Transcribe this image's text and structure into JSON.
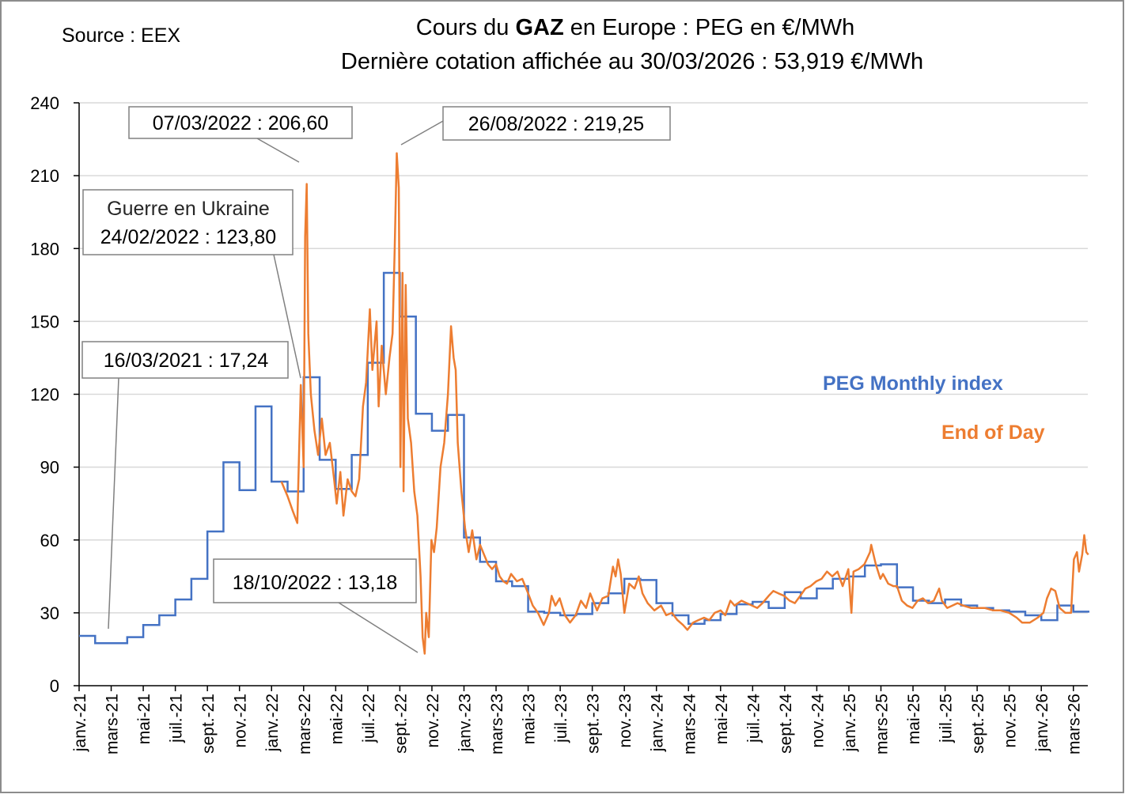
{
  "chart_data": {
    "type": "line",
    "source": "Source : EEX",
    "title_line1_prefix": "Cours du ",
    "title_line1_bold": "GAZ",
    "title_line1_suffix": " en Europe : PEG en €/MWh",
    "title_line2": "Dernière cotation affichée au 30/03/2026 : 53,919 €/MWh",
    "ylim": [
      0,
      240
    ],
    "yticks": [
      0,
      30,
      60,
      90,
      120,
      150,
      180,
      210,
      240
    ],
    "xticks": [
      "janv.-21",
      "mars-21",
      "mai-21",
      "juil.-21",
      "sept.-21",
      "nov.-21",
      "janv.-22",
      "mars-22",
      "mai-22",
      "juil.-22",
      "sept.-22",
      "nov.-22",
      "janv.-23",
      "mars-23",
      "mai-23",
      "juil.-23",
      "sept.-23",
      "nov.-23",
      "janv.-24",
      "mars-24",
      "mai-24",
      "juil.-24",
      "sept.-24",
      "nov.-24",
      "janv.-25",
      "mars-25",
      "mai-25",
      "juil.-25",
      "sept.-25",
      "nov.-25",
      "janv.-26",
      "mars-26"
    ],
    "grid": true,
    "colors": {
      "monthly": "#4472C4",
      "eod": "#ED7D31",
      "grid": "#D9D9D9"
    },
    "series": [
      {
        "name": "PEG Monthly index",
        "kind": "step-monthly",
        "start_month": "2021-01",
        "values": [
          20.5,
          17.5,
          17.5,
          20,
          25,
          29,
          35.5,
          44,
          63.5,
          92,
          80.5,
          115,
          84,
          80,
          127,
          93,
          81,
          95,
          133,
          170,
          152,
          112,
          105,
          111.5,
          61,
          51,
          43,
          41,
          30.5,
          30,
          29,
          29.5,
          34,
          38,
          44,
          43.5,
          34,
          29,
          25.5,
          27,
          29.5,
          33.5,
          34.5,
          32,
          38.5,
          36,
          40,
          44,
          45,
          49.5,
          50,
          40.5,
          35,
          34,
          35.5,
          33,
          32,
          31,
          30.5,
          29,
          27,
          33,
          30.5
        ]
      },
      {
        "name": "End of Day",
        "kind": "daily",
        "points": [
          [
            "2022-01-20",
            84
          ],
          [
            "2022-02-01",
            78
          ],
          [
            "2022-02-10",
            72
          ],
          [
            "2022-02-18",
            67
          ],
          [
            "2022-02-24",
            123.8
          ],
          [
            "2022-03-01",
            90
          ],
          [
            "2022-03-04",
            185
          ],
          [
            "2022-03-07",
            206.6
          ],
          [
            "2022-03-10",
            145
          ],
          [
            "2022-03-15",
            120
          ],
          [
            "2022-03-22",
            105
          ],
          [
            "2022-03-29",
            95
          ],
          [
            "2022-04-05",
            110
          ],
          [
            "2022-04-12",
            95
          ],
          [
            "2022-04-20",
            100
          ],
          [
            "2022-04-28",
            85
          ],
          [
            "2022-05-03",
            75
          ],
          [
            "2022-05-10",
            88
          ],
          [
            "2022-05-16",
            70
          ],
          [
            "2022-05-24",
            85
          ],
          [
            "2022-06-01",
            80
          ],
          [
            "2022-06-08",
            78
          ],
          [
            "2022-06-15",
            85
          ],
          [
            "2022-06-22",
            115
          ],
          [
            "2022-06-28",
            125
          ],
          [
            "2022-07-05",
            155
          ],
          [
            "2022-07-10",
            130
          ],
          [
            "2022-07-18",
            150
          ],
          [
            "2022-07-22",
            115
          ],
          [
            "2022-07-28",
            140
          ],
          [
            "2022-08-05",
            120
          ],
          [
            "2022-08-12",
            135
          ],
          [
            "2022-08-18",
            145
          ],
          [
            "2022-08-22",
            180
          ],
          [
            "2022-08-26",
            219.25
          ],
          [
            "2022-08-30",
            205
          ],
          [
            "2022-09-02",
            90
          ],
          [
            "2022-09-06",
            170
          ],
          [
            "2022-09-08",
            80
          ],
          [
            "2022-09-12",
            165
          ],
          [
            "2022-09-16",
            110
          ],
          [
            "2022-09-22",
            100
          ],
          [
            "2022-09-28",
            80
          ],
          [
            "2022-10-04",
            70
          ],
          [
            "2022-10-10",
            45
          ],
          [
            "2022-10-14",
            20
          ],
          [
            "2022-10-18",
            13.18
          ],
          [
            "2022-10-21",
            30
          ],
          [
            "2022-10-26",
            20
          ],
          [
            "2022-10-31",
            60
          ],
          [
            "2022-11-05",
            55
          ],
          [
            "2022-11-10",
            65
          ],
          [
            "2022-11-17",
            90
          ],
          [
            "2022-11-24",
            100
          ],
          [
            "2022-12-01",
            120
          ],
          [
            "2022-12-07",
            148
          ],
          [
            "2022-12-12",
            135
          ],
          [
            "2022-12-16",
            130
          ],
          [
            "2022-12-20",
            100
          ],
          [
            "2022-12-27",
            80
          ],
          [
            "2023-01-03",
            65
          ],
          [
            "2023-01-10",
            55
          ],
          [
            "2023-01-17",
            64
          ],
          [
            "2023-01-25",
            52
          ],
          [
            "2023-02-01",
            58
          ],
          [
            "2023-02-08",
            54
          ],
          [
            "2023-02-15",
            50
          ],
          [
            "2023-02-22",
            48
          ],
          [
            "2023-03-01",
            50
          ],
          [
            "2023-03-08",
            45
          ],
          [
            "2023-03-15",
            43
          ],
          [
            "2023-03-22",
            42
          ],
          [
            "2023-03-30",
            46
          ],
          [
            "2023-04-10",
            43
          ],
          [
            "2023-04-20",
            44
          ],
          [
            "2023-05-01",
            38
          ],
          [
            "2023-05-10",
            33
          ],
          [
            "2023-05-20",
            30
          ],
          [
            "2023-05-31",
            25
          ],
          [
            "2023-06-10",
            30
          ],
          [
            "2023-06-15",
            37
          ],
          [
            "2023-06-22",
            33
          ],
          [
            "2023-06-30",
            36
          ],
          [
            "2023-07-10",
            29
          ],
          [
            "2023-07-20",
            26
          ],
          [
            "2023-07-31",
            29
          ],
          [
            "2023-08-10",
            35
          ],
          [
            "2023-08-20",
            32
          ],
          [
            "2023-08-28",
            38
          ],
          [
            "2023-09-10",
            31
          ],
          [
            "2023-09-20",
            36
          ],
          [
            "2023-10-01",
            37
          ],
          [
            "2023-10-10",
            49
          ],
          [
            "2023-10-15",
            45
          ],
          [
            "2023-10-20",
            52
          ],
          [
            "2023-10-25",
            46
          ],
          [
            "2023-11-01",
            30
          ],
          [
            "2023-11-10",
            42
          ],
          [
            "2023-11-20",
            40
          ],
          [
            "2023-11-28",
            45
          ],
          [
            "2023-12-05",
            38
          ],
          [
            "2023-12-15",
            34
          ],
          [
            "2023-12-28",
            31
          ],
          [
            "2024-01-10",
            33
          ],
          [
            "2024-01-20",
            29
          ],
          [
            "2024-01-31",
            30
          ],
          [
            "2024-02-10",
            27
          ],
          [
            "2024-02-20",
            25
          ],
          [
            "2024-02-28",
            23
          ],
          [
            "2024-03-10",
            26
          ],
          [
            "2024-03-20",
            27
          ],
          [
            "2024-03-31",
            28
          ],
          [
            "2024-04-10",
            27
          ],
          [
            "2024-04-20",
            30
          ],
          [
            "2024-05-01",
            31
          ],
          [
            "2024-05-10",
            29
          ],
          [
            "2024-05-20",
            35
          ],
          [
            "2024-05-28",
            33
          ],
          [
            "2024-06-10",
            35
          ],
          [
            "2024-06-20",
            34
          ],
          [
            "2024-06-30",
            33
          ],
          [
            "2024-07-10",
            32
          ],
          [
            "2024-07-20",
            34
          ],
          [
            "2024-08-01",
            37
          ],
          [
            "2024-08-10",
            39
          ],
          [
            "2024-08-20",
            38
          ],
          [
            "2024-08-31",
            37
          ],
          [
            "2024-09-10",
            35
          ],
          [
            "2024-09-20",
            34
          ],
          [
            "2024-09-30",
            37
          ],
          [
            "2024-10-10",
            40
          ],
          [
            "2024-10-20",
            41
          ],
          [
            "2024-10-31",
            43
          ],
          [
            "2024-11-10",
            44
          ],
          [
            "2024-11-20",
            47
          ],
          [
            "2024-11-30",
            45
          ],
          [
            "2024-12-10",
            47
          ],
          [
            "2024-12-20",
            41
          ],
          [
            "2024-12-31",
            48
          ],
          [
            "2025-01-06",
            30
          ],
          [
            "2025-01-10",
            47
          ],
          [
            "2025-01-20",
            48
          ],
          [
            "2025-01-31",
            50
          ],
          [
            "2025-02-10",
            55
          ],
          [
            "2025-02-12",
            58
          ],
          [
            "2025-02-20",
            50
          ],
          [
            "2025-02-28",
            44
          ],
          [
            "2025-03-05",
            46
          ],
          [
            "2025-03-15",
            42
          ],
          [
            "2025-03-25",
            41
          ],
          [
            "2025-04-01",
            41
          ],
          [
            "2025-04-10",
            35
          ],
          [
            "2025-04-20",
            33
          ],
          [
            "2025-04-30",
            32
          ],
          [
            "2025-05-10",
            35
          ],
          [
            "2025-05-20",
            36
          ],
          [
            "2025-05-30",
            34
          ],
          [
            "2025-06-10",
            35
          ],
          [
            "2025-06-20",
            40
          ],
          [
            "2025-06-25",
            35
          ],
          [
            "2025-07-05",
            32
          ],
          [
            "2025-07-15",
            33
          ],
          [
            "2025-07-25",
            34
          ],
          [
            "2025-08-05",
            33
          ],
          [
            "2025-08-20",
            32
          ],
          [
            "2025-09-01",
            32
          ],
          [
            "2025-09-15",
            32
          ],
          [
            "2025-10-01",
            31
          ],
          [
            "2025-10-15",
            31
          ],
          [
            "2025-11-01",
            30
          ],
          [
            "2025-11-15",
            28
          ],
          [
            "2025-11-25",
            26
          ],
          [
            "2025-12-10",
            26
          ],
          [
            "2025-12-25",
            28
          ],
          [
            "2026-01-05",
            30
          ],
          [
            "2026-01-12",
            36
          ],
          [
            "2026-01-20",
            40
          ],
          [
            "2026-01-28",
            39
          ],
          [
            "2026-02-05",
            32
          ],
          [
            "2026-02-15",
            30
          ],
          [
            "2026-02-25",
            30
          ],
          [
            "2026-03-02",
            52
          ],
          [
            "2026-03-08",
            55
          ],
          [
            "2026-03-12",
            47
          ],
          [
            "2026-03-18",
            54
          ],
          [
            "2026-03-22",
            62
          ],
          [
            "2026-03-26",
            55
          ],
          [
            "2026-03-30",
            53.919
          ]
        ]
      }
    ],
    "legend": {
      "monthly": "PEG Monthly index",
      "eod": "End of Day"
    },
    "annotations": {
      "peak_march": "07/03/2022 : 206,60",
      "peak_august": "26/08/2022 : 219,25",
      "war_line1": "Guerre en Ukraine",
      "war_line2": "24/02/2022 : 123,80",
      "low_2021": "16/03/2021 : 17,24",
      "low_2022": "18/10/2022 : 13,18"
    }
  }
}
